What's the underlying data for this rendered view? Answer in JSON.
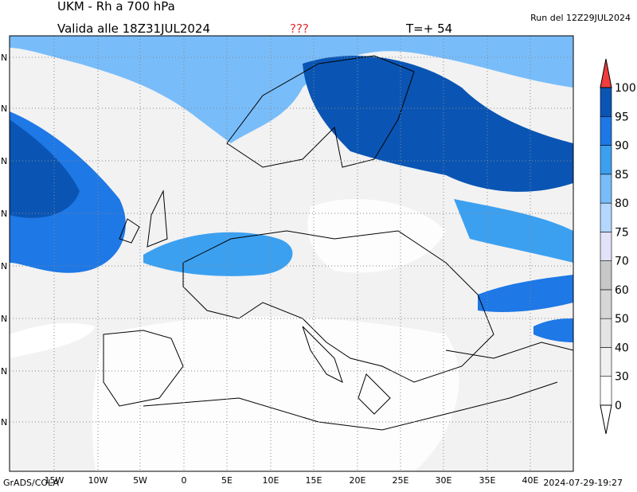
{
  "header": {
    "title": "UKM - Rh a 700 hPa",
    "valid": "Valida alle 18Z31JUL2024",
    "flag": "???",
    "step": "T=+ 54",
    "run": "Run del 12Z29JUL2024"
  },
  "axes": {
    "lon_labels": [
      "15W",
      "10W",
      "5W",
      "0",
      "5E",
      "10E",
      "15E",
      "20E",
      "25E",
      "30E",
      "35E",
      "40E"
    ],
    "lat_labels": [
      "N",
      "N",
      "N",
      "N",
      "N",
      "N",
      "N",
      "N"
    ]
  },
  "colorbar": {
    "levels": [
      0,
      30,
      40,
      50,
      60,
      70,
      75,
      80,
      85,
      90,
      95,
      100
    ],
    "colors": [
      "#ffffff",
      "#f0f0f0",
      "#e4e4e4",
      "#d6d6d6",
      "#c8c8c8",
      "#e2e2f8",
      "#b4d7ff",
      "#78bdfa",
      "#3ca0f0",
      "#1e78e6",
      "#0a55b4"
    ],
    "over_color": "#f03c3c",
    "under_color": "#ffffff"
  },
  "footer": {
    "left": "GrADS/COLA",
    "right": "2024-07-29-19:27"
  }
}
